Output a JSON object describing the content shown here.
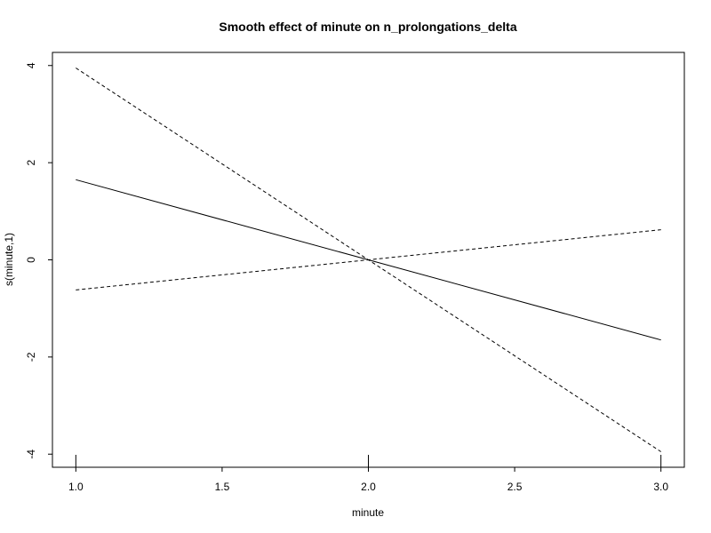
{
  "chart_data": {
    "type": "line",
    "title": "Smooth effect of minute on n_prolongations_delta",
    "xlabel": "minute",
    "ylabel": "s(minute,1)",
    "xlim": [
      0.92,
      3.08
    ],
    "ylim": [
      -4.27,
      4.27
    ],
    "x_ticks": [
      1.0,
      1.5,
      2.0,
      2.5,
      3.0
    ],
    "x_tick_labels": [
      "1.0",
      "1.5",
      "2.0",
      "2.5",
      "3.0"
    ],
    "y_ticks": [
      -4,
      -2,
      0,
      2,
      4
    ],
    "y_tick_labels": [
      "-4",
      "-2",
      "0",
      "2",
      "4"
    ],
    "rug": [
      1.0,
      2.0,
      3.0
    ],
    "grid": false,
    "legend": "none",
    "series": [
      {
        "role": "fit",
        "style": "solid",
        "x": [
          1.0,
          2.0,
          3.0
        ],
        "y": [
          1.65,
          0.0,
          -1.65
        ]
      },
      {
        "role": "upper",
        "style": "dashed",
        "x": [
          1.0,
          2.0,
          3.0
        ],
        "y": [
          3.95,
          0.0,
          0.62
        ]
      },
      {
        "role": "lower",
        "style": "dashed",
        "x": [
          1.0,
          2.0,
          3.0
        ],
        "y": [
          -0.62,
          0.0,
          -3.95
        ]
      }
    ]
  }
}
